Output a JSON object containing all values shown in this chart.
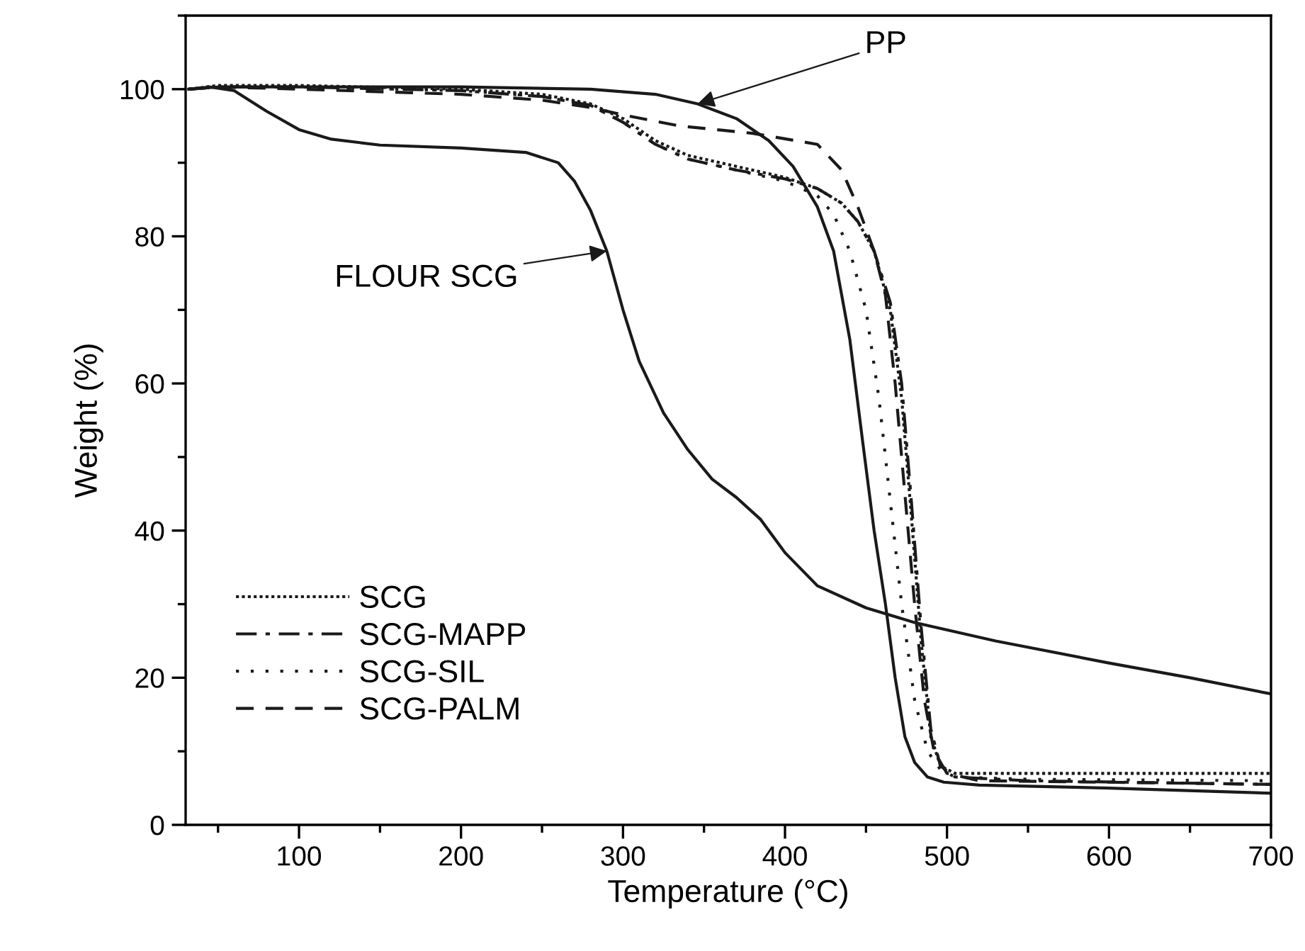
{
  "chart_data": {
    "type": "line",
    "xlabel": "Temperature (°C)",
    "ylabel": "Weight (%)",
    "xlim": [
      30,
      700
    ],
    "ylim": [
      0,
      110
    ],
    "xticks": [
      100,
      200,
      300,
      400,
      500,
      600,
      700
    ],
    "yticks": [
      0,
      20,
      40,
      60,
      80,
      100
    ],
    "grid": false,
    "legend": "bottom left",
    "marker": "none",
    "series": [
      {
        "color": "#1a1a1a",
        "line_style": "solid",
        "x": [
          32,
          45,
          60,
          80,
          100,
          120,
          150,
          200,
          240,
          260,
          270,
          280,
          290,
          300,
          310,
          325,
          340,
          355,
          370,
          385,
          400,
          420,
          450,
          480,
          530,
          600,
          650,
          700
        ],
        "values": [
          100,
          100.3,
          99.8,
          97,
          94.5,
          93.2,
          92.4,
          92,
          91.4,
          90,
          87.5,
          83.5,
          78,
          70,
          63,
          56,
          51,
          47,
          44.5,
          41.5,
          37,
          32.5,
          29.5,
          27.5,
          25,
          22,
          20,
          17.8
        ]
      },
      {
        "color": "#1a1a1a",
        "line_style": "solid",
        "x": [
          32,
          50,
          100,
          200,
          280,
          320,
          346,
          370,
          390,
          405,
          420,
          430,
          440,
          448,
          455,
          462,
          468,
          474,
          480,
          488,
          498,
          520,
          600,
          700
        ],
        "values": [
          100,
          100.3,
          100.3,
          100.3,
          100,
          99.3,
          98,
          96,
          93,
          89.5,
          84,
          78,
          66,
          52,
          40,
          30,
          20,
          12,
          8.5,
          6.5,
          5.8,
          5.4,
          5,
          4.3
        ]
      },
      {
        "name": "SCG",
        "color": "#1a1a1a",
        "line_style": "densely dotted",
        "x": [
          32,
          50,
          100,
          200,
          250,
          280,
          300,
          320,
          340,
          370,
          400,
          420,
          435,
          445,
          455,
          465,
          472,
          478,
          484,
          490,
          496,
          505,
          550,
          700
        ],
        "values": [
          100,
          100.5,
          100.5,
          100,
          99.3,
          98,
          96,
          93,
          91,
          89.5,
          88,
          86.5,
          84.5,
          82,
          78,
          70,
          58,
          42,
          25,
          12,
          8,
          7,
          7,
          7
        ]
      },
      {
        "name": "SCG-MAPP",
        "color": "#1a1a1a",
        "line_style": "dashdot",
        "x": [
          32,
          50,
          100,
          200,
          250,
          280,
          300,
          320,
          340,
          370,
          400,
          420,
          435,
          445,
          455,
          465,
          472,
          478,
          484,
          490,
          496,
          505,
          550,
          700
        ],
        "values": [
          100,
          100.3,
          100.3,
          99.8,
          99,
          97.8,
          95.5,
          92.5,
          90.5,
          89,
          87.8,
          86.5,
          84.5,
          82,
          78,
          71,
          60,
          44,
          27,
          13,
          8,
          6.5,
          6,
          5.5
        ]
      },
      {
        "name": "SCG-SIL",
        "color": "#1a1a1a",
        "line_style": "dotted",
        "x": [
          32,
          50,
          100,
          200,
          250,
          280,
          300,
          320,
          340,
          370,
          400,
          420,
          430,
          440,
          450,
          458,
          465,
          472,
          480,
          488,
          496,
          505,
          550,
          700
        ],
        "values": [
          100,
          100.3,
          100.3,
          99.8,
          99,
          97.8,
          95.5,
          92.5,
          90.5,
          89,
          87.5,
          85.5,
          83,
          78,
          70,
          58,
          44,
          30,
          17,
          10,
          7.5,
          6.5,
          6.2,
          6
        ]
      },
      {
        "name": "SCG-PALM",
        "color": "#1a1a1a",
        "line_style": "dashed",
        "x": [
          32,
          50,
          100,
          200,
          250,
          280,
          300,
          335,
          380,
          420,
          435,
          445,
          455,
          462,
          468,
          474,
          480,
          486,
          492,
          500,
          520,
          600,
          700
        ],
        "values": [
          100,
          100.3,
          100,
          99.3,
          98.5,
          97.5,
          96.5,
          95,
          94,
          92.5,
          89,
          84,
          78,
          72,
          60,
          45,
          30,
          17,
          10,
          7,
          6,
          5.8,
          5.5
        ]
      }
    ],
    "annotations": [
      {
        "text": "PP",
        "x": 346,
        "y": 98
      },
      {
        "text": "FLOUR SCG",
        "x": 290,
        "y": 78
      }
    ]
  }
}
